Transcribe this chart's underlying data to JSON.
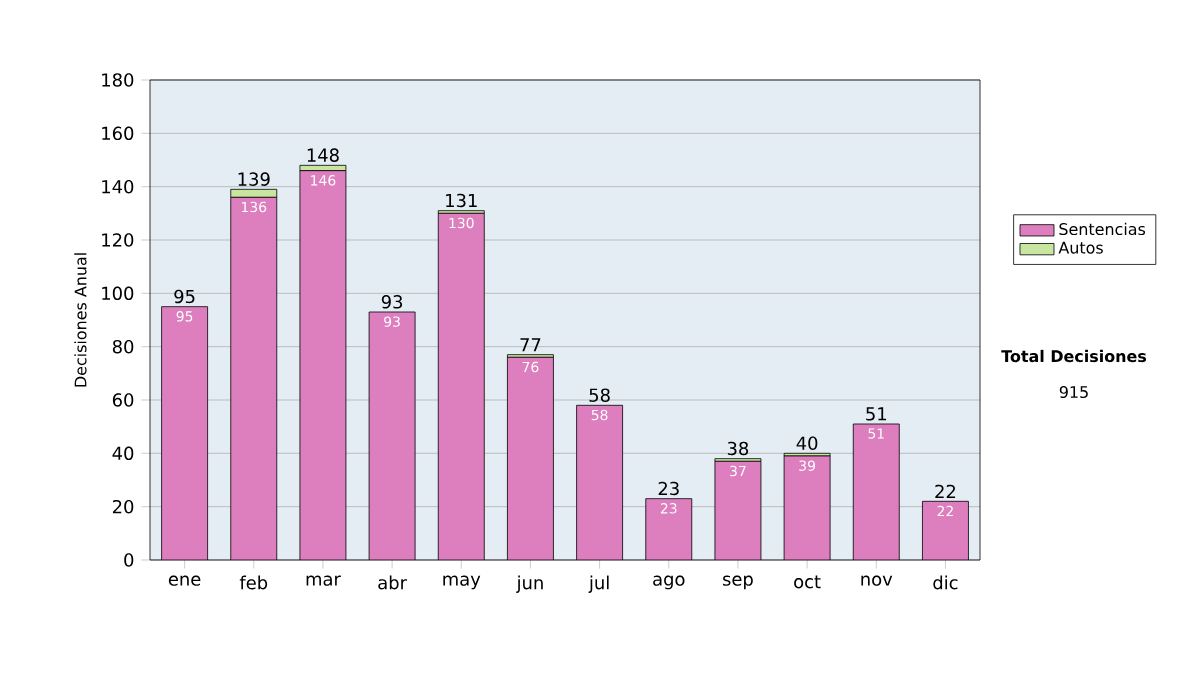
{
  "chart_data": {
    "type": "bar",
    "stacked": true,
    "ylabel": "Decisiones Anual",
    "categories": [
      "ene",
      "feb",
      "mar",
      "abr",
      "may",
      "jun",
      "jul",
      "ago",
      "sep",
      "oct",
      "nov",
      "dic"
    ],
    "series": [
      {
        "name": "Sentencias",
        "color": "#dd7fbf",
        "values": [
          95,
          136,
          146,
          93,
          130,
          76,
          58,
          23,
          37,
          39,
          51,
          22
        ],
        "value_labels": [
          "95",
          "136",
          "146",
          "93",
          "130",
          "76",
          "58",
          "23",
          "37",
          "39",
          "51",
          "22"
        ]
      },
      {
        "name": "Autos",
        "color": "#c8e6a0",
        "values": [
          0,
          3,
          2,
          0,
          1,
          1,
          0,
          0,
          1,
          1,
          0,
          0
        ]
      }
    ],
    "totals": [
      "95",
      "139",
      "148",
      "93",
      "131",
      "77",
      "58",
      "23",
      "38",
      "40",
      "51",
      "22"
    ],
    "ylim": [
      0,
      180
    ],
    "yticks": [
      0,
      20,
      40,
      60,
      80,
      100,
      120,
      140,
      160,
      180
    ],
    "grid": "y",
    "legend": "right",
    "annotations": [
      "**Total Decisiones**",
      "915"
    ]
  }
}
